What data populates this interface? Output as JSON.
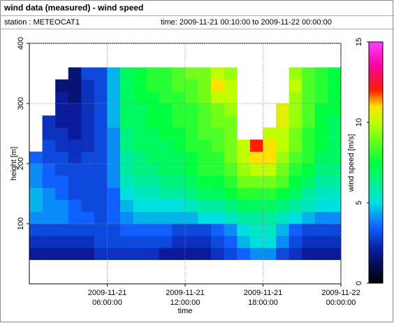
{
  "chart_data": {
    "type": "heatmap",
    "title": "wind data (measured) - wind speed",
    "station": "station : METEOCAT1",
    "time_range": "time: 2009-11-21 00:10:00 to 2009-11-22 00:00:00",
    "xlabel": "time",
    "ylabel": "height [m]",
    "colorbar_label": "wind speed [m/s]",
    "xlim": [
      0,
      24
    ],
    "xticks": [
      {
        "value": 6,
        "label": [
          "2009-11-21",
          "06:00:00"
        ]
      },
      {
        "value": 12,
        "label": [
          "2009-11-21",
          "12:00:00"
        ]
      },
      {
        "value": 18,
        "label": [
          "2009-11-21",
          "18:00:00"
        ]
      },
      {
        "value": 24,
        "label": [
          "2009-11-22",
          "00:00:00"
        ]
      }
    ],
    "ylim": [
      0,
      400
    ],
    "yticks": [
      100,
      200,
      300,
      400
    ],
    "clim": [
      0,
      15
    ],
    "cticks": [
      0,
      5,
      10,
      15
    ],
    "grid": true,
    "colormap": [
      [
        0,
        "#000000"
      ],
      [
        2,
        "#0a1a9a"
      ],
      [
        3.5,
        "#1060ff"
      ],
      [
        5,
        "#00e0e0"
      ],
      [
        7.5,
        "#00ff40"
      ],
      [
        10,
        "#c0ff00"
      ],
      [
        11,
        "#ffe000"
      ],
      [
        12,
        "#ff2000"
      ],
      [
        13.5,
        "#ff00a0"
      ],
      [
        15,
        "#ff40ff"
      ]
    ],
    "x_edges": [
      0,
      1,
      2,
      3,
      4,
      5,
      6,
      7,
      8,
      9,
      10,
      11,
      12,
      13,
      14,
      15,
      16,
      17,
      18,
      19,
      20,
      21,
      22,
      23,
      24
    ],
    "y_edges": [
      40,
      60,
      80,
      100,
      120,
      140,
      160,
      180,
      200,
      220,
      240,
      260,
      280,
      300,
      320,
      340,
      360
    ],
    "values": [
      [
        2,
        2,
        2,
        2,
        2,
        2.5,
        2.5,
        2.5,
        2.5,
        2.5,
        2,
        2,
        2,
        2,
        2.5,
        3,
        3.5,
        4,
        4,
        3,
        2.5,
        2,
        2,
        2
      ],
      [
        2.5,
        2.5,
        2.5,
        2.5,
        2.5,
        3,
        3,
        3,
        3,
        3,
        3,
        2.5,
        2.5,
        2.5,
        3,
        3.5,
        4.5,
        5,
        5,
        4,
        3,
        2.5,
        2.5,
        2.5
      ],
      [
        3,
        3,
        3,
        3,
        3,
        3,
        3,
        3.5,
        3.5,
        3.5,
        3.5,
        3,
        3,
        3,
        3.5,
        4,
        5,
        5.5,
        5.5,
        4.5,
        3.5,
        3,
        3,
        3
      ],
      [
        4,
        4,
        4,
        3.5,
        3.5,
        3,
        3.5,
        4,
        4.5,
        4.5,
        4.5,
        4.5,
        4.5,
        5,
        5,
        5.5,
        6,
        6,
        6,
        5.5,
        5,
        4.5,
        4,
        4
      ],
      [
        4.5,
        4,
        4,
        3.5,
        3,
        3,
        3.5,
        4.5,
        5,
        5,
        5,
        5,
        5.5,
        6,
        6,
        6.5,
        7,
        7,
        7,
        6.5,
        6,
        5.5,
        5,
        5
      ],
      [
        4.5,
        4,
        3.5,
        3,
        3,
        3,
        3.5,
        5,
        5.5,
        5.5,
        6,
        6,
        6.5,
        7,
        7,
        7.5,
        8,
        8,
        8,
        7.5,
        7,
        6,
        5.5,
        5.5
      ],
      [
        4,
        3.5,
        3.5,
        3,
        3,
        3,
        4,
        5.5,
        6,
        6,
        6.5,
        6.5,
        7,
        7.5,
        7.5,
        8,
        9,
        9,
        9,
        8.5,
        7.5,
        7,
        6,
        6
      ],
      [
        4,
        3.5,
        3,
        3,
        3,
        3,
        4,
        6,
        6.5,
        6.5,
        7,
        7,
        7.5,
        8,
        8,
        8.5,
        9.5,
        10,
        10,
        9,
        8,
        7.5,
        6.5,
        6.5
      ],
      [
        3.5,
        3,
        3,
        2.5,
        3,
        3,
        4,
        6,
        6.5,
        7,
        7,
        7,
        7.5,
        8,
        8,
        9,
        10,
        11,
        11,
        9.5,
        8.5,
        8,
        7,
        7
      ],
      [
        null,
        3,
        2.5,
        2.5,
        2.5,
        3,
        4,
        6.5,
        7,
        7,
        7,
        7.5,
        8,
        8,
        8.5,
        9,
        10,
        12,
        11,
        10,
        9,
        8,
        7.5,
        7
      ],
      [
        null,
        2.5,
        2.5,
        2,
        2.5,
        3,
        4,
        6.5,
        7,
        7,
        7.5,
        7.5,
        8,
        8.5,
        8.5,
        9,
        null,
        null,
        10,
        10,
        9,
        8,
        7.5,
        7
      ],
      [
        null,
        2.5,
        2,
        2,
        2.5,
        3,
        4.5,
        7,
        7,
        7.5,
        7.5,
        8,
        8,
        8.5,
        9,
        9,
        null,
        null,
        null,
        10.5,
        9.5,
        8.5,
        7.5,
        7
      ],
      [
        null,
        null,
        2,
        2,
        2.5,
        3,
        4.5,
        7,
        7,
        7.5,
        7.5,
        8,
        8,
        8.5,
        9,
        9.5,
        null,
        null,
        null,
        10.5,
        9.5,
        8.5,
        7.5,
        7.5
      ],
      [
        null,
        null,
        2,
        1.5,
        2.5,
        3,
        4.5,
        7,
        7.5,
        7.5,
        8,
        8,
        8.5,
        9,
        10,
        10,
        null,
        null,
        null,
        null,
        9.5,
        8.5,
        8,
        7.5
      ],
      [
        null,
        null,
        1.5,
        1.5,
        2.5,
        3,
        4.5,
        7,
        7.5,
        8,
        8,
        8.5,
        8.5,
        9,
        11,
        10,
        null,
        null,
        null,
        null,
        10,
        8.5,
        8,
        7.5
      ],
      [
        null,
        null,
        null,
        1.5,
        3,
        3,
        4.5,
        7,
        7.5,
        8,
        8,
        8.5,
        9,
        9,
        10,
        9.5,
        null,
        null,
        null,
        null,
        9.5,
        8.5,
        8,
        7.5
      ]
    ]
  }
}
